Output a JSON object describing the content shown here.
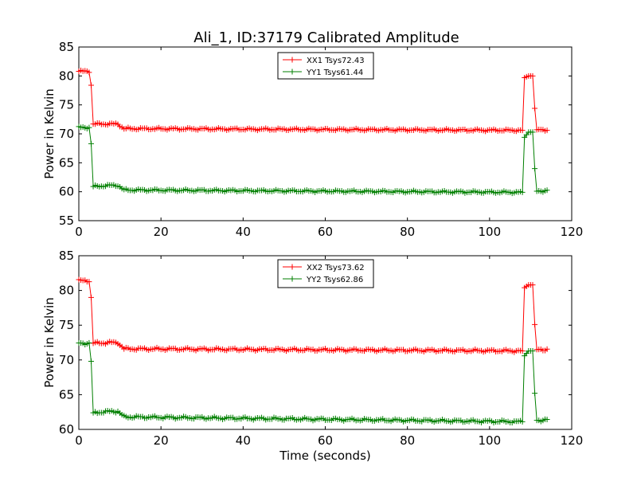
{
  "figure_title": "Ali_1, ID:37179 Calibrated Amplitude",
  "colors": {
    "series_red": "#ff0000",
    "series_green": "#007f00",
    "axes": "#000000"
  },
  "chart_data": [
    {
      "type": "line",
      "marker": "+",
      "ylabel": "Power in Kelvin",
      "xlabel": "",
      "xlim": [
        0,
        120
      ],
      "ylim": [
        55,
        85
      ],
      "xticks": [
        0,
        20,
        40,
        60,
        80,
        100,
        120
      ],
      "yticks": [
        55,
        60,
        65,
        70,
        75,
        80,
        85
      ],
      "legend_position": "top-center",
      "series": [
        {
          "name": "XX1 Tsys72.43",
          "color": "#ff0000",
          "profile": [
            [
              0,
              80.8
            ],
            [
              2.5,
              80.8
            ],
            [
              3,
              78.4
            ],
            [
              3.5,
              71.7
            ],
            [
              8,
              71.7
            ],
            [
              9.5,
              71.7
            ],
            [
              11,
              70.9
            ],
            [
              108,
              70.6
            ],
            [
              108.5,
              79.7
            ],
            [
              109.5,
              80.0
            ],
            [
              110.5,
              80.0
            ],
            [
              111,
              74.4
            ],
            [
              111.5,
              70.7
            ],
            [
              114,
              70.7
            ]
          ]
        },
        {
          "name": "YY1 Tsys61.44",
          "color": "#007f00",
          "profile": [
            [
              0,
              71.1
            ],
            [
              2.5,
              71.1
            ],
            [
              3,
              68.3
            ],
            [
              3.5,
              60.9
            ],
            [
              8,
              61.1
            ],
            [
              9.5,
              61.1
            ],
            [
              11,
              60.3
            ],
            [
              108,
              59.9
            ],
            [
              108.5,
              69.4
            ],
            [
              109.5,
              70.3
            ],
            [
              110.5,
              70.3
            ],
            [
              111,
              64.0
            ],
            [
              111.5,
              60.1
            ],
            [
              114,
              60.2
            ]
          ]
        }
      ]
    },
    {
      "type": "line",
      "marker": "+",
      "ylabel": "Power in Kelvin",
      "xlabel": "Time (seconds)",
      "xlim": [
        0,
        120
      ],
      "ylim": [
        60,
        85
      ],
      "xticks": [
        0,
        20,
        40,
        60,
        80,
        100,
        120
      ],
      "yticks": [
        60,
        65,
        70,
        75,
        80,
        85
      ],
      "legend_position": "top-center",
      "series": [
        {
          "name": "XX2 Tsys73.62",
          "color": "#ff0000",
          "profile": [
            [
              0,
              81.4
            ],
            [
              2.5,
              81.4
            ],
            [
              3,
              79.0
            ],
            [
              3.5,
              72.4
            ],
            [
              8,
              72.5
            ],
            [
              9.5,
              72.5
            ],
            [
              11,
              71.6
            ],
            [
              108,
              71.3
            ],
            [
              108.5,
              80.4
            ],
            [
              109.5,
              80.8
            ],
            [
              110.5,
              80.8
            ],
            [
              111,
              75.1
            ],
            [
              111.5,
              71.5
            ],
            [
              114,
              71.5
            ]
          ]
        },
        {
          "name": "YY2 Tsys62.86",
          "color": "#007f00",
          "profile": [
            [
              0,
              72.4
            ],
            [
              2.5,
              72.4
            ],
            [
              3,
              69.8
            ],
            [
              3.5,
              62.4
            ],
            [
              8,
              62.6
            ],
            [
              9.5,
              62.6
            ],
            [
              11,
              61.8
            ],
            [
              108,
              61.1
            ],
            [
              108.5,
              70.6
            ],
            [
              109.5,
              71.3
            ],
            [
              110.5,
              71.3
            ],
            [
              111,
              65.2
            ],
            [
              111.5,
              61.3
            ],
            [
              114,
              61.4
            ]
          ]
        }
      ]
    }
  ]
}
